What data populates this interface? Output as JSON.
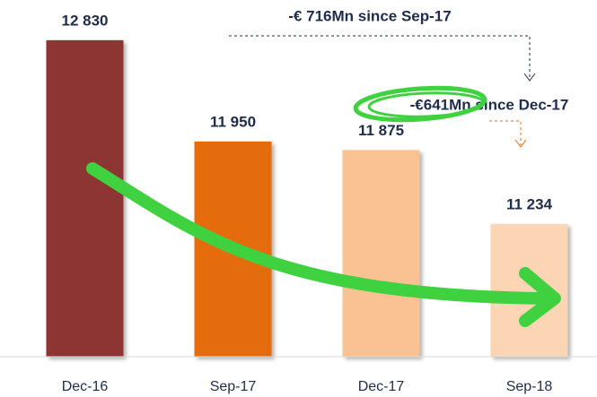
{
  "chart_data": {
    "type": "bar",
    "categories": [
      "Dec-16",
      "Sep-17",
      "Dec-17",
      "Sep-18"
    ],
    "values": [
      12830,
      11950,
      11875,
      11234
    ],
    "value_labels": [
      "12 830",
      "11 950",
      "11 875",
      "11 234"
    ],
    "colors": [
      "#8c3431",
      "#e46c0a",
      "#fac192",
      "#fcd5b5"
    ],
    "ylim": [
      10080,
      13000
    ],
    "annotations": [
      "-€ 716Mn since Sep-17",
      "-€641Mn since Dec-17"
    ]
  }
}
